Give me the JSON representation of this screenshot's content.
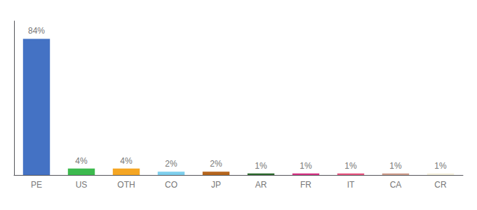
{
  "chart_data": {
    "type": "bar",
    "categories": [
      "PE",
      "US",
      "OTH",
      "CO",
      "JP",
      "AR",
      "FR",
      "IT",
      "CA",
      "CR"
    ],
    "values": [
      84,
      4,
      4,
      2,
      2,
      1,
      1,
      1,
      1,
      1
    ],
    "value_labels": [
      "84%",
      "4%",
      "4%",
      "2%",
      "2%",
      "1%",
      "1%",
      "1%",
      "1%",
      "1%"
    ],
    "colors": [
      "#4472c4",
      "#3dba4e",
      "#f5a623",
      "#7ecfed",
      "#b5651d",
      "#2d6a2d",
      "#d63384",
      "#e75480",
      "#cd9b8a",
      "#f5f0dc"
    ],
    "ylim": [
      0,
      95
    ],
    "grid": false,
    "data_labels": true,
    "tick_labels": "x"
  }
}
